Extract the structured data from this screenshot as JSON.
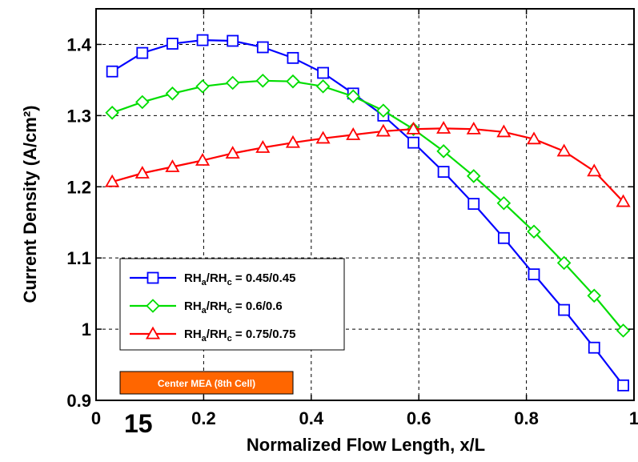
{
  "chart_data": {
    "type": "line",
    "xlabel": "Normalized Flow Length, x/L",
    "ylabel": "Current Density (A/cm²)",
    "xlim": [
      0,
      1
    ],
    "ylim": [
      0.9,
      1.45
    ],
    "x_ticks": [
      "0",
      "0.2",
      "0.4",
      "0.6",
      "0.8",
      "1"
    ],
    "y_ticks": [
      "0.9",
      "1",
      "1.1",
      "1.2",
      "1.3",
      "1.4"
    ],
    "grid": true,
    "legend_position": "lower-left",
    "x": [
      0.03,
      0.086,
      0.142,
      0.198,
      0.254,
      0.31,
      0.366,
      0.422,
      0.478,
      0.534,
      0.59,
      0.646,
      0.702,
      0.758,
      0.814,
      0.87,
      0.926,
      0.98
    ],
    "series": [
      {
        "name": "RHa/RHc = 0.45/0.45",
        "legend": {
          "pre": "RH",
          "sub1": "a",
          "mid": "/RH",
          "sub2": "c",
          "post": " = 0.45/0.45"
        },
        "color": "#0000ff",
        "marker": "square",
        "values": [
          1.362,
          1.388,
          1.401,
          1.406,
          1.405,
          1.396,
          1.381,
          1.36,
          1.331,
          1.3,
          1.262,
          1.221,
          1.176,
          1.128,
          1.077,
          1.027,
          0.974,
          0.921
        ]
      },
      {
        "name": "RHa/RHc = 0.6/0.6",
        "legend": {
          "pre": "RH",
          "sub1": "a",
          "mid": "/RH",
          "sub2": "c",
          "post": " = 0.6/0.6"
        },
        "color": "#00dd00",
        "marker": "diamond",
        "values": [
          1.304,
          1.319,
          1.331,
          1.341,
          1.346,
          1.349,
          1.348,
          1.341,
          1.327,
          1.307,
          1.281,
          1.25,
          1.215,
          1.177,
          1.137,
          1.093,
          1.047,
          0.998
        ]
      },
      {
        "name": "RHa/RHc = 0.75/0.75",
        "legend": {
          "pre": "RH",
          "sub1": "a",
          "mid": "/RH",
          "sub2": "c",
          "post": " = 0.75/0.75"
        },
        "color": "#ff0000",
        "marker": "triangle",
        "values": [
          1.207,
          1.219,
          1.228,
          1.237,
          1.247,
          1.255,
          1.262,
          1.268,
          1.273,
          1.278,
          1.281,
          1.282,
          1.281,
          1.277,
          1.267,
          1.25,
          1.222,
          1.179
        ]
      }
    ],
    "annotations": {
      "badge": "Center MEA (8th Cell)",
      "overlay": "15"
    }
  },
  "colors": {
    "badge_bg": "#ff6600",
    "grid": "#000000"
  }
}
